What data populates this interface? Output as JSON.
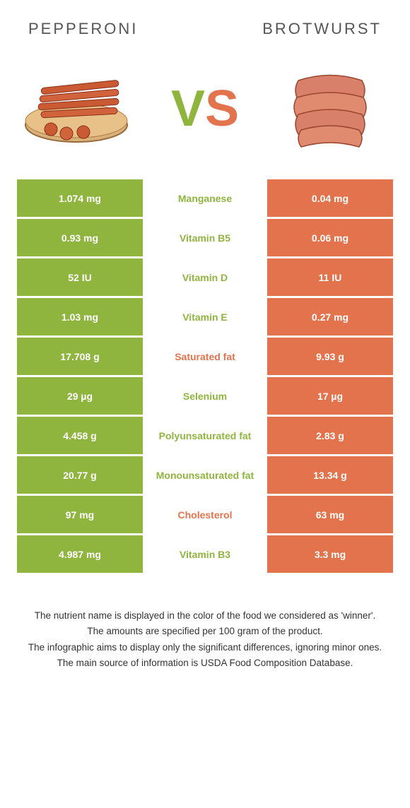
{
  "colors": {
    "left": "#8fb53f",
    "right": "#e2734d",
    "vs_v": "#8fb53f",
    "vs_s": "#e2734d"
  },
  "left_food": {
    "title": "PEPPERONI"
  },
  "right_food": {
    "title": "BROTWURST"
  },
  "vs": {
    "v": "V",
    "s": "S"
  },
  "rows": [
    {
      "left": "1.074 mg",
      "label": "Manganese",
      "right": "0.04 mg",
      "winner": "left"
    },
    {
      "left": "0.93 mg",
      "label": "Vitamin B5",
      "right": "0.06 mg",
      "winner": "left"
    },
    {
      "left": "52 IU",
      "label": "Vitamin D",
      "right": "11 IU",
      "winner": "left"
    },
    {
      "left": "1.03 mg",
      "label": "Vitamin E",
      "right": "0.27 mg",
      "winner": "left"
    },
    {
      "left": "17.708 g",
      "label": "Saturated fat",
      "right": "9.93 g",
      "winner": "right"
    },
    {
      "left": "29 µg",
      "label": "Selenium",
      "right": "17 µg",
      "winner": "left"
    },
    {
      "left": "4.458 g",
      "label": "Polyunsaturated fat",
      "right": "2.83 g",
      "winner": "left"
    },
    {
      "left": "20.77 g",
      "label": "Monounsaturated fat",
      "right": "13.34 g",
      "winner": "left"
    },
    {
      "left": "97 mg",
      "label": "Cholesterol",
      "right": "63 mg",
      "winner": "right"
    },
    {
      "left": "4.987 mg",
      "label": "Vitamin B3",
      "right": "3.3 mg",
      "winner": "left"
    }
  ],
  "footer": {
    "l1": "The nutrient name is displayed in the color of the food we considered as 'winner'.",
    "l2": "The amounts are specified per 100 gram of the product.",
    "l3": "The infographic aims to display only the significant differences, ignoring minor ones.",
    "l4": "The main source of information is USDA Food Composition Database."
  }
}
